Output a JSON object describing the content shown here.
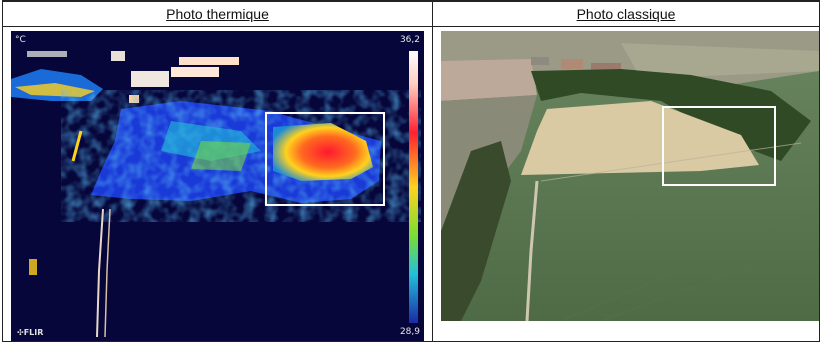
{
  "headers": {
    "thermal_title": "Photo thermique",
    "classic_title": "Photo classique"
  },
  "thermal": {
    "unit": "°C",
    "scale_max": "36,2",
    "scale_min": "28,9",
    "brand": "FLIR",
    "colors": {
      "background": "#06063a",
      "hot": "#ff2030",
      "warm": "#ffd21e",
      "cool": "#22c0d8",
      "cold": "#1a3ad8"
    }
  },
  "classic": {
    "colors": {
      "field": "#5e7a4f",
      "stubble": "#d9caa4",
      "trees": "#2f4a24",
      "highlight": "#ffffff"
    }
  }
}
